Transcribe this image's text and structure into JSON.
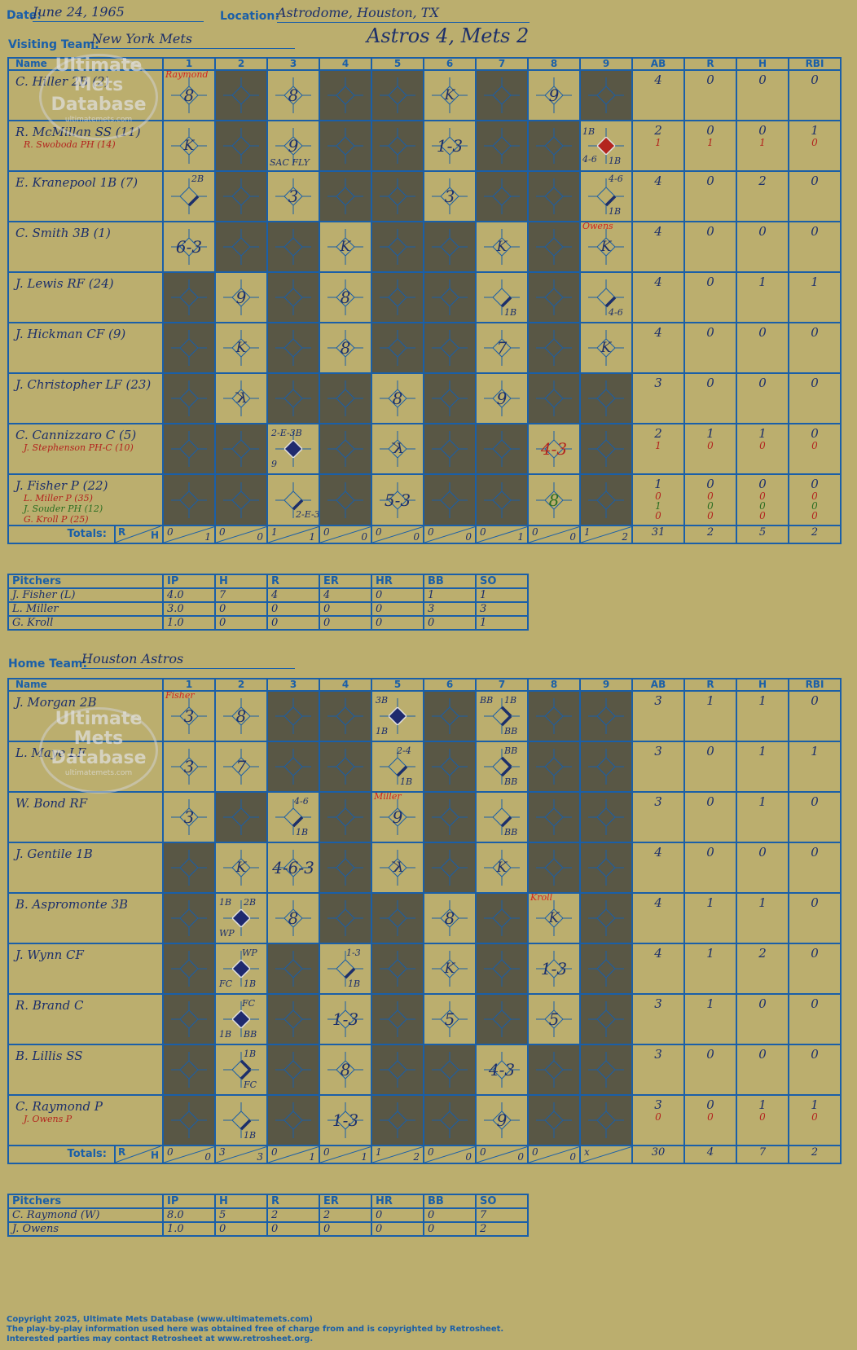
{
  "header": {
    "date_label": "Date:",
    "date": "June 24, 1965",
    "location_label": "Location:",
    "location": "Astrodome, Houston, TX",
    "title": "Astros 4, Mets 2"
  },
  "columns": [
    "Name",
    "1",
    "2",
    "3",
    "4",
    "5",
    "6",
    "7",
    "8",
    "9",
    "AB",
    "R",
    "H",
    "RBI"
  ],
  "totals_label": "Totals:",
  "totals_r": "R",
  "totals_h": "H",
  "pitcher_columns": [
    "Pitchers",
    "IP",
    "H",
    "R",
    "ER",
    "HR",
    "BB",
    "SO"
  ],
  "visiting": {
    "team_label": "Visiting Team:",
    "team": "New York Mets",
    "rows": [
      {
        "name": "C. Hiller 2B (2)",
        "subs": [],
        "stats": [
          [
            "4"
          ],
          [
            "0"
          ],
          [
            "0"
          ],
          [
            "0"
          ]
        ],
        "gray": [
          2,
          4,
          5,
          7,
          9
        ],
        "cells": {
          "1": {
            "res": "8",
            "pitch": "Raymond"
          },
          "3": {
            "res": "8"
          },
          "6": {
            "res": "K",
            "k": true
          },
          "8": {
            "res": "9"
          }
        }
      },
      {
        "name": "R. McMillan SS (11)",
        "subs": [
          {
            "t": "R. Swoboda PH (14)"
          }
        ],
        "stats": [
          [
            "2",
            "1"
          ],
          [
            "0",
            "1"
          ],
          [
            "0",
            "1"
          ],
          [
            "1",
            "0"
          ]
        ],
        "gray": [
          2,
          4,
          5,
          7,
          8
        ],
        "cells": {
          "1": {
            "res": "K",
            "k": true
          },
          "3": {
            "res": "9",
            "ann": [
              {
                "t": "SAC FLY",
                "x": 2,
                "y": 44
              }
            ]
          },
          "6": {
            "res": "1-3"
          },
          "9": {
            "dia": "red",
            "ann": [
              {
                "t": "1B",
                "x": 2,
                "y": 6
              },
              {
                "t": "4-6",
                "x": 2,
                "y": 40
              },
              {
                "t": "1B",
                "x": 34,
                "y": 42
              }
            ]
          }
        }
      },
      {
        "name": "E. Kranepool 1B (7)",
        "subs": [],
        "stats": [
          [
            "4"
          ],
          [
            "0"
          ],
          [
            "2"
          ],
          [
            "0"
          ]
        ],
        "gray": [
          2,
          4,
          5,
          7,
          8
        ],
        "cells": {
          "1": {
            "path": "1b",
            "ann": [
              {
                "t": "2B",
                "x": 34,
                "y": 2
              }
            ]
          },
          "3": {
            "res": "3"
          },
          "6": {
            "res": "3"
          },
          "9": {
            "path": "1b",
            "ann": [
              {
                "t": "4-6",
                "x": 34,
                "y": 2
              },
              {
                "t": "1B",
                "x": 34,
                "y": 42
              }
            ]
          }
        }
      },
      {
        "name": "C. Smith 3B (1)",
        "subs": [],
        "stats": [
          [
            "4"
          ],
          [
            "0"
          ],
          [
            "0"
          ],
          [
            "0"
          ]
        ],
        "gray": [
          2,
          3,
          5,
          6,
          8
        ],
        "cells": {
          "1": {
            "res": "6-3"
          },
          "4": {
            "res": "K",
            "k": true
          },
          "7": {
            "res": "K",
            "k": true
          },
          "9": {
            "res": "K",
            "k": true,
            "pitch": "Owens"
          }
        }
      },
      {
        "name": "J. Lewis RF (24)",
        "subs": [],
        "stats": [
          [
            "4"
          ],
          [
            "0"
          ],
          [
            "1"
          ],
          [
            "1"
          ]
        ],
        "gray": [
          1,
          3,
          5,
          6,
          8
        ],
        "cells": {
          "2": {
            "res": "9"
          },
          "4": {
            "res": "8"
          },
          "7": {
            "path": "1b",
            "ann": [
              {
                "t": "1B",
                "x": 34,
                "y": 42
              }
            ]
          },
          "9": {
            "path": "1b",
            "ann": [
              {
                "t": "4-6",
                "x": 34,
                "y": 42
              }
            ]
          }
        }
      },
      {
        "name": "J. Hickman CF (9)",
        "subs": [],
        "stats": [
          [
            "4"
          ],
          [
            "0"
          ],
          [
            "0"
          ],
          [
            "0"
          ]
        ],
        "gray": [
          1,
          3,
          5,
          6,
          8
        ],
        "cells": {
          "2": {
            "res": "K",
            "k": true
          },
          "4": {
            "res": "8"
          },
          "7": {
            "res": "7"
          },
          "9": {
            "res": "K",
            "k": true
          }
        }
      },
      {
        "name": "J. Christopher LF (23)",
        "subs": [],
        "stats": [
          [
            "3"
          ],
          [
            "0"
          ],
          [
            "0"
          ],
          [
            "0"
          ]
        ],
        "gray": [
          1,
          3,
          4,
          6,
          8,
          9
        ],
        "cells": {
          "2": {
            "res": "K",
            "k": true,
            "rev": true
          },
          "5": {
            "res": "8"
          },
          "7": {
            "res": "9"
          }
        }
      },
      {
        "name": "C. Cannizzaro C (5)",
        "subs": [
          {
            "t": "J. Stephenson PH-C (10)"
          }
        ],
        "stats": [
          [
            "2",
            "1"
          ],
          [
            "1",
            "0"
          ],
          [
            "1",
            "0"
          ],
          [
            "0",
            "0"
          ]
        ],
        "gray": [
          1,
          2,
          4,
          6,
          7,
          9
        ],
        "cells": {
          "3": {
            "dia": "blue",
            "ann": [
              {
                "t": "2-E-3B",
                "x": 4,
                "y": 4
              },
              {
                "t": "9",
                "x": 4,
                "y": 42
              }
            ]
          },
          "5": {
            "res": "K",
            "k": true,
            "rev": true
          },
          "8": {
            "res": "4-3",
            "red": true
          }
        }
      },
      {
        "name": "J. Fisher P (22)",
        "subs": [
          {
            "t": "L. Miller P (35)"
          },
          {
            "t": "J. Souder PH (12)",
            "g": true
          },
          {
            "t": "G. Kroll P (25)"
          }
        ],
        "stats": [
          [
            "1",
            "0",
            "1",
            "0"
          ],
          [
            "0",
            "0",
            "0",
            "0"
          ],
          [
            "0",
            "0",
            "0",
            "0"
          ],
          [
            "0",
            "0",
            "0",
            "0"
          ]
        ],
        "gray": [
          1,
          2,
          4,
          6,
          7,
          9
        ],
        "cells": {
          "3": {
            "path": "1b",
            "ann": [
              {
                "t": "2-E-3",
                "x": 34,
                "y": 42
              }
            ]
          },
          "5": {
            "res": "5-3"
          },
          "8": {
            "res": "8",
            "grn": true
          }
        }
      }
    ],
    "totals": [
      [
        "0",
        "1"
      ],
      [
        "0",
        "0"
      ],
      [
        "1",
        "1"
      ],
      [
        "0",
        "0"
      ],
      [
        "0",
        "0"
      ],
      [
        "0",
        "0"
      ],
      [
        "0",
        "1"
      ],
      [
        "0",
        "0"
      ],
      [
        "1",
        "2"
      ]
    ],
    "totals_stats": [
      "31",
      "2",
      "5",
      "2"
    ],
    "pitchers": [
      [
        "J. Fisher (L)",
        "4.0",
        "7",
        "4",
        "4",
        "0",
        "1",
        "1"
      ],
      [
        "L. Miller",
        "3.0",
        "0",
        "0",
        "0",
        "0",
        "3",
        "3"
      ],
      [
        "G. Kroll",
        "1.0",
        "0",
        "0",
        "0",
        "0",
        "0",
        "1"
      ]
    ]
  },
  "home": {
    "team_label": "Home Team:",
    "team": "Houston Astros",
    "rows": [
      {
        "name": "J. Morgan 2B",
        "subs": [],
        "stats": [
          [
            "3"
          ],
          [
            "1"
          ],
          [
            "1"
          ],
          [
            "0"
          ]
        ],
        "gray": [
          3,
          4,
          6,
          8,
          9
        ],
        "cells": {
          "1": {
            "res": "3",
            "pitch": "Fisher"
          },
          "2": {
            "res": "8"
          },
          "5": {
            "dia": "blue",
            "ann": [
              {
                "t": "3B",
                "x": 4,
                "y": 4
              },
              {
                "t": "1B",
                "x": 4,
                "y": 42
              }
            ]
          },
          "7": {
            "path": "2b",
            "ann": [
              {
                "t": "BB",
                "x": 4,
                "y": 4
              },
              {
                "t": "1B",
                "x": 34,
                "y": 4
              },
              {
                "t": "BB",
                "x": 34,
                "y": 42
              }
            ]
          }
        }
      },
      {
        "name": "L. Maye LF",
        "subs": [],
        "stats": [
          [
            "3"
          ],
          [
            "0"
          ],
          [
            "1"
          ],
          [
            "1"
          ]
        ],
        "gray": [
          3,
          4,
          6,
          8,
          9
        ],
        "cells": {
          "1": {
            "res": "3"
          },
          "2": {
            "res": "7"
          },
          "5": {
            "path": "1b2",
            "ann": [
              {
                "t": "2-4",
                "x": 30,
                "y": 4
              },
              {
                "t": "1B",
                "x": 34,
                "y": 42
              }
            ]
          },
          "7": {
            "path": "2b",
            "ann": [
              {
                "t": "BB",
                "x": 34,
                "y": 4
              },
              {
                "t": "BB",
                "x": 34,
                "y": 42
              }
            ]
          }
        }
      },
      {
        "name": "W. Bond RF",
        "subs": [],
        "stats": [
          [
            "3"
          ],
          [
            "0"
          ],
          [
            "1"
          ],
          [
            "0"
          ]
        ],
        "gray": [
          2,
          4,
          6,
          8,
          9
        ],
        "cells": {
          "1": {
            "res": "3"
          },
          "3": {
            "path": "1b2",
            "ann": [
              {
                "t": "4-6",
                "x": 32,
                "y": 4
              },
              {
                "t": "1B",
                "x": 34,
                "y": 42
              }
            ]
          },
          "5": {
            "res": "9",
            "pitch": "Miller"
          },
          "7": {
            "path": "1b",
            "ann": [
              {
                "t": "BB",
                "x": 34,
                "y": 42
              }
            ]
          }
        }
      },
      {
        "name": "J. Gentile 1B",
        "subs": [],
        "stats": [
          [
            "4"
          ],
          [
            "0"
          ],
          [
            "0"
          ],
          [
            "0"
          ]
        ],
        "gray": [
          1,
          4,
          6,
          8,
          9
        ],
        "cells": {
          "2": {
            "res": "K",
            "k": true
          },
          "3": {
            "res": "4-6-3"
          },
          "5": {
            "res": "K",
            "k": true,
            "rev": true
          },
          "7": {
            "res": "K",
            "k": true
          }
        }
      },
      {
        "name": "B. Aspromonte 3B",
        "subs": [],
        "stats": [
          [
            "4"
          ],
          [
            "1"
          ],
          [
            "1"
          ],
          [
            "0"
          ]
        ],
        "gray": [
          1,
          4,
          5,
          7,
          9
        ],
        "cells": {
          "2": {
            "dia": "blue",
            "ann": [
              {
                "t": "1B",
                "x": 4,
                "y": 4
              },
              {
                "t": "2B",
                "x": 34,
                "y": 4
              },
              {
                "t": "WP",
                "x": 4,
                "y": 42
              }
            ]
          },
          "3": {
            "res": "8"
          },
          "6": {
            "res": "8"
          },
          "8": {
            "res": "K",
            "k": true,
            "pitch": "Kroll"
          }
        }
      },
      {
        "name": "J. Wynn CF",
        "subs": [],
        "stats": [
          [
            "4"
          ],
          [
            "1"
          ],
          [
            "2"
          ],
          [
            "0"
          ]
        ],
        "gray": [
          1,
          3,
          5,
          7,
          9
        ],
        "cells": {
          "2": {
            "dia": "blue",
            "ann": [
              {
                "t": "WP",
                "x": 32,
                "y": 4
              },
              {
                "t": "FC",
                "x": 4,
                "y": 42
              },
              {
                "t": "1B",
                "x": 34,
                "y": 42
              }
            ]
          },
          "4": {
            "path": "1b2",
            "ann": [
              {
                "t": "1-3",
                "x": 32,
                "y": 4
              },
              {
                "t": "1B",
                "x": 34,
                "y": 42
              }
            ]
          },
          "6": {
            "res": "K",
            "k": true
          },
          "8": {
            "res": "1-3"
          }
        }
      },
      {
        "name": "R. Brand C",
        "subs": [],
        "stats": [
          [
            "3"
          ],
          [
            "1"
          ],
          [
            "0"
          ],
          [
            "0"
          ]
        ],
        "gray": [
          1,
          3,
          5,
          7,
          9
        ],
        "cells": {
          "2": {
            "dia": "blue",
            "ann": [
              {
                "t": "FC",
                "x": 32,
                "y": 4
              },
              {
                "t": "1B",
                "x": 4,
                "y": 42
              },
              {
                "t": "BB",
                "x": 34,
                "y": 42
              }
            ]
          },
          "4": {
            "res": "1-3"
          },
          "6": {
            "res": "5"
          },
          "8": {
            "res": "5"
          }
        }
      },
      {
        "name": "B. Lillis SS",
        "subs": [],
        "stats": [
          [
            "3"
          ],
          [
            "0"
          ],
          [
            "0"
          ],
          [
            "0"
          ]
        ],
        "gray": [
          1,
          3,
          5,
          6,
          8,
          9
        ],
        "cells": {
          "2": {
            "path": "2b",
            "ann": [
              {
                "t": "1B",
                "x": 34,
                "y": 4
              },
              {
                "t": "FC",
                "x": 34,
                "y": 42
              }
            ]
          },
          "4": {
            "res": "8"
          },
          "7": {
            "res": "4-3"
          }
        }
      },
      {
        "name": "C. Raymond P",
        "subs": [
          {
            "t": "J. Owens P"
          }
        ],
        "stats": [
          [
            "3",
            "0"
          ],
          [
            "0",
            "0"
          ],
          [
            "1",
            "0"
          ],
          [
            "1",
            "0"
          ]
        ],
        "gray": [
          1,
          3,
          5,
          6,
          8,
          9
        ],
        "cells": {
          "2": {
            "path": "1b",
            "ann": [
              {
                "t": "1B",
                "x": 34,
                "y": 42
              }
            ]
          },
          "4": {
            "res": "1-3"
          },
          "7": {
            "res": "9"
          }
        }
      }
    ],
    "totals": [
      [
        "0",
        "0"
      ],
      [
        "3",
        "3"
      ],
      [
        "0",
        "1"
      ],
      [
        "0",
        "1"
      ],
      [
        "1",
        "2"
      ],
      [
        "0",
        "0"
      ],
      [
        "0",
        "0"
      ],
      [
        "0",
        "0"
      ],
      [
        "x",
        ""
      ]
    ],
    "totals_stats": [
      "30",
      "4",
      "7",
      "2"
    ],
    "pitchers": [
      [
        "C. Raymond (W)",
        "8.0",
        "5",
        "2",
        "2",
        "0",
        "0",
        "7"
      ],
      [
        "J. Owens",
        "1.0",
        "0",
        "0",
        "0",
        "0",
        "0",
        "2"
      ]
    ]
  },
  "logo": {
    "line1": "Ultimate",
    "line2": "Mets",
    "line3": "Database",
    "url": "ultimatemets.com"
  },
  "footer": {
    "line1": "Copyright 2025, Ultimate Mets Database (www.ultimatemets.com)",
    "line2": "The play-by-play information used here was obtained free of charge from and is copyrighted by Retrosheet.",
    "line3": "Interested parties may contact Retrosheet at www.retrosheet.org."
  },
  "colors": {
    "background": "#bbae6e",
    "grid": "#1a5fa8",
    "gray_cell": "#595745",
    "ink": "#1c2f6b",
    "red": "#b3241e",
    "green": "#2b6e22",
    "run_blue": "#1f2a6e"
  }
}
